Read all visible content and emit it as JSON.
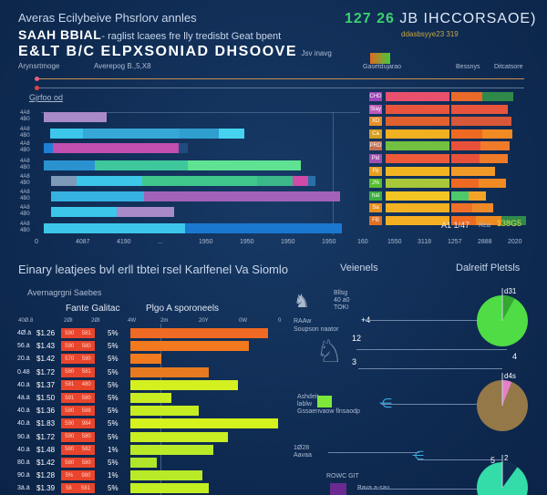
{
  "header": {
    "subtitle": "Averas Ecilybeive Phsrlorv annles",
    "title_line1": "SAAH BBIAL",
    "title_line1_suffix": "- raglist lcaees fre lly tredisbt Geat bpent",
    "title_line2": "E&LT B/C ELPXSONIAD DHSOOVE",
    "title_line2_suffix": "Jsv inavg",
    "right_title_num": "127 26",
    "right_title": "JB IHCCORSAOE)",
    "right_subtitle": "ddasbsyye23 319"
  },
  "top_chart": {
    "label_left": "Arynsrtmoge",
    "label_mid": "Averepog",
    "label_mid_value": "B.,5,X8",
    "section_label": "Gjrfoo od",
    "y_labels": [
      [
        "4A8",
        "4B0"
      ],
      [
        "4A8",
        "4B0"
      ],
      [
        "4A8",
        "4B0"
      ],
      [
        "4A8",
        "4B0"
      ],
      [
        "4A8",
        "4B0"
      ],
      [
        "4A8",
        "4B0"
      ],
      [
        "4A8",
        "4B0"
      ],
      [
        "4A8",
        "4B0"
      ]
    ],
    "x_ticks": [
      "0",
      "4087",
      "4190",
      "...",
      "1950",
      "1950",
      "1950",
      "1950"
    ],
    "bars": [
      {
        "start": 2.4,
        "segments": [
          {
            "v": 21,
            "c": "#a88ac8"
          }
        ]
      },
      {
        "start": 4.5,
        "segments": [
          {
            "v": 11,
            "c": "#3cc6ea"
          },
          {
            "v": 32,
            "c": "#36a8d8"
          },
          {
            "v": 13,
            "c": "#2f9fd0"
          },
          {
            "v": 8.5,
            "c": "#45d3f0"
          }
        ]
      },
      {
        "start": 2.4,
        "segments": [
          {
            "v": 3,
            "c": "#1f7fd6"
          },
          {
            "v": 42,
            "c": "#c04fb0"
          },
          {
            "v": 3,
            "c": "#214a80"
          }
        ]
      },
      {
        "start": 2.4,
        "segments": [
          {
            "v": 17,
            "c": "#2a92d0"
          },
          {
            "v": 31,
            "c": "#3ec79a"
          },
          {
            "v": 37.5,
            "c": "#5fe392"
          }
        ]
      },
      {
        "start": 4.8,
        "segments": [
          {
            "v": 8.5,
            "c": "#7f9ab8"
          },
          {
            "v": 22,
            "c": "#3cc6ea"
          },
          {
            "v": 38,
            "c": "#40c78c"
          },
          {
            "v": 12,
            "c": "#3bb889"
          },
          {
            "v": 5,
            "c": "#d04aa8"
          },
          {
            "v": 2.5,
            "c": "#2a6fa8"
          }
        ]
      },
      {
        "start": 4.8,
        "segments": [
          {
            "v": 31,
            "c": "#35b2e2"
          },
          {
            "v": 65,
            "c": "#a262b8"
          }
        ]
      },
      {
        "start": 4.8,
        "segments": [
          {
            "v": 22,
            "c": "#3cc6ea"
          },
          {
            "v": 19,
            "c": "#a88ac8"
          }
        ]
      },
      {
        "start": 2.4,
        "segments": [
          {
            "v": 47,
            "c": "#3cc6ea"
          },
          {
            "v": 52,
            "c": "#1b78d0"
          }
        ]
      }
    ]
  },
  "right_panel": {
    "legend_label": "Gasetdujarao",
    "col1": "Bessnys",
    "col2": "Ditcatsore",
    "ticks": [
      "160",
      "1550",
      "3118",
      "1257",
      "2888",
      "2020"
    ],
    "footnote": "A1 1/47",
    "footnote2": "Rea",
    "footnote3": "138G5",
    "rows": [
      {
        "badge": "CHD",
        "bc": "#9c44b8",
        "c1": "#e8506e",
        "c2": [
          "#ea6a2a",
          "#2f8a4a"
        ]
      },
      {
        "badge": "Slay",
        "bc": "#c05ab8",
        "c1": "#e8553c",
        "c2": [
          "#e8553c"
        ]
      },
      {
        "badge": "XD",
        "bc": "#e8902a",
        "c1": "#e0602e",
        "c2": [
          "#d8583a"
        ]
      },
      {
        "badge": "Ca",
        "bc": "#d8a020",
        "c1": "#f0b020",
        "c2": [
          "#ee6a22",
          "#f08a22"
        ]
      },
      {
        "badge": "PRD",
        "bc": "#c07050",
        "c1": "#72c040",
        "c2": [
          "#e8503a",
          "#ee7a2a"
        ]
      },
      {
        "badge": "Pld",
        "bc": "#a050b0",
        "c1": "#ec5a3a",
        "c2": [
          "#e8503a",
          "#ef7a28"
        ]
      },
      {
        "badge": "Fb",
        "bc": "#e8a020",
        "c1": "#f3b422",
        "c2": [
          "#f29a28"
        ]
      },
      {
        "badge": "J%",
        "bc": "#58c030",
        "c1": "#a8c83a",
        "c2": [
          "#ee6a22",
          "#f08a22"
        ]
      },
      {
        "badge": "hal",
        "bc": "#3cb040",
        "c1": "#f2c424",
        "c2": [
          "#4ec86a",
          "#f2a428"
        ]
      },
      {
        "badge": "Sa",
        "bc": "#e89020",
        "c1": "#f4b222",
        "c2": [
          "#ee7028",
          "#f08a28"
        ]
      },
      {
        "badge": "FB",
        "bc": "#e07020",
        "c1": "#f4b022",
        "c2": [
          "#ee6a22",
          "#f08a22",
          "#2f8a4a"
        ]
      }
    ]
  },
  "bottom_left": {
    "title": "Einary leatjees bvl erll tbtei rsel Karlfenel Va Siomlo",
    "subtitle": "Avernagrgni Saebes",
    "col_a": "Fante Galitac",
    "col_b": "Plgo A sporoneels",
    "headers": [
      "40Ø.8",
      "2ØI",
      "2ØI",
      "4W",
      "2m",
      "20Y",
      "0W",
      "0"
    ],
    "rows": [
      {
        "a": "4Ø.ä",
        "p": "$1.26",
        "r1": "590",
        "r2": "581",
        "pct": "5%",
        "v": 0.93,
        "c": "#ef6a22"
      },
      {
        "a": "56.ä",
        "p": "$1.43",
        "r1": "590",
        "r2": "580",
        "pct": "5%",
        "v": 0.8,
        "c": "#f2791e"
      },
      {
        "a": "20.ä",
        "p": "$1.42",
        "r1": "570",
        "r2": "590",
        "pct": "5%",
        "v": 0.21,
        "c": "#f07a1e"
      },
      {
        "a": "0.48",
        "p": "$1.72",
        "r1": "580",
        "r2": "581",
        "pct": "5%",
        "v": 0.53,
        "c": "#e57a20"
      },
      {
        "a": "40.ä",
        "p": "$1.37",
        "r1": "581",
        "r2": "480",
        "pct": "5%",
        "v": 0.73,
        "c": "#d4f020"
      },
      {
        "a": "4ä.ä",
        "p": "$1.50",
        "r1": "591",
        "r2": "580",
        "pct": "5%",
        "v": 0.28,
        "c": "#c8ee22"
      },
      {
        "a": "40.ä",
        "p": "$1.36",
        "r1": "580",
        "r2": "588",
        "pct": "5%",
        "v": 0.46,
        "c": "#c6ee22"
      },
      {
        "a": "40.ä",
        "p": "$1.83",
        "r1": "590",
        "r2": "984",
        "pct": "5%",
        "v": 1.0,
        "c": "#d4f21e"
      },
      {
        "a": "90.ä",
        "p": "$1.72",
        "r1": "590",
        "r2": "580",
        "pct": "5%",
        "v": 0.66,
        "c": "#c8ef22"
      },
      {
        "a": "40.ä",
        "p": "$1.48",
        "r1": "580",
        "r2": "582",
        "pct": "1%",
        "v": 0.56,
        "c": "#b8ea28"
      },
      {
        "a": "80.ä",
        "p": "$1.42",
        "r1": "580",
        "r2": "580",
        "pct": "5%",
        "v": 0.18,
        "c": "#b0e62a"
      },
      {
        "a": "90.ä",
        "p": "$1.28",
        "r1": "5%",
        "r2": "980",
        "pct": "1%",
        "v": 0.49,
        "c": "#b8ea28"
      },
      {
        "a": "3ä.ä",
        "p": "$1.39",
        "r1": "58",
        "r2": "581",
        "pct": "5%",
        "v": 0.53,
        "c": "#c2ee22"
      }
    ]
  },
  "bottom_right": {
    "title_left": "Veienels",
    "title_right": "Dalreitf Pletsls",
    "t1": "Bllsg",
    "t1b": "40 a0",
    "t1c": "TOKI",
    "t2": "RAAw",
    "t2b": "Soupson naator",
    "n12": "12",
    "n3": "3",
    "plus": "+4",
    "n4": "4",
    "lbl3": "Ashdeit",
    "lbl3b": "lablw",
    "lbl3c": "Gssaenvaow flnsaodp",
    "lbl4": "1Ø28",
    "lbl4b": "Aavaa",
    "lbl5": "ROWC GIT",
    "lbl5b": "Bava a-sau",
    "pies": [
      {
        "label": "d31",
        "share": 0.08,
        "main": "#4fdc44",
        "slice": "#34a830"
      },
      {
        "label": "d4s",
        "share": 0.06,
        "main": "#947848",
        "slice": "#e580c8"
      },
      {
        "label": "2",
        "share": 0.1,
        "main": "#33dca8",
        "slice": "#0f2b52"
      }
    ],
    "pie_label_mid": "4",
    "pie_label_3b": "5"
  }
}
